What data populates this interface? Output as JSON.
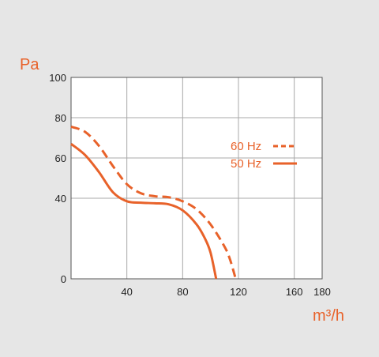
{
  "chart_data": {
    "type": "line",
    "y_unit": "Pa",
    "x_unit": "m³/h",
    "xlim": [
      0,
      180
    ],
    "ylim": [
      0,
      100
    ],
    "x_ticks": [
      40,
      80,
      120,
      160,
      180
    ],
    "y_ticks": [
      0,
      40,
      60,
      80,
      100
    ],
    "grid": true,
    "legend_position": "top-right",
    "accent_color": "#e8622a",
    "series": [
      {
        "name": "60 Hz",
        "style": "dashed",
        "x": [
          0,
          10,
          20,
          30,
          40,
          50,
          60,
          70,
          80,
          90,
          100,
          110,
          114,
          118
        ],
        "y": [
          75.5,
          73,
          66,
          56,
          47,
          42.5,
          41,
          40.5,
          38.5,
          34.5,
          27,
          16,
          9.5,
          0
        ]
      },
      {
        "name": "50 Hz",
        "style": "solid",
        "x": [
          0,
          10,
          20,
          30,
          40,
          50,
          60,
          70,
          80,
          90,
          96,
          100,
          104
        ],
        "y": [
          67,
          61.5,
          53,
          43,
          38.5,
          37.8,
          37.5,
          37,
          34,
          27,
          20,
          13,
          0
        ]
      }
    ]
  }
}
